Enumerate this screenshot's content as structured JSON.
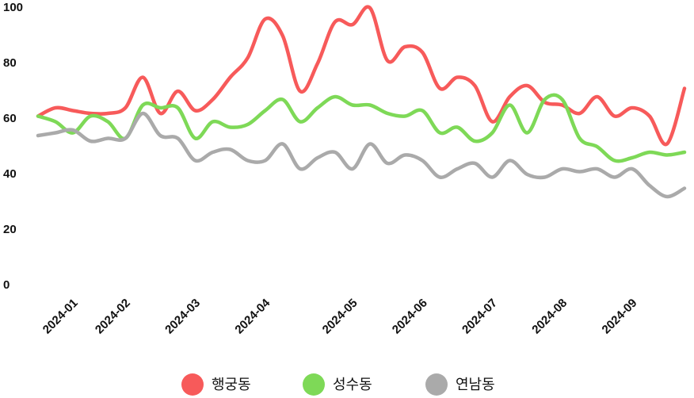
{
  "chart_data": {
    "type": "line",
    "categories": [
      null,
      null,
      "2024-01",
      null,
      null,
      "2024-02",
      null,
      null,
      null,
      "2024-03",
      null,
      null,
      null,
      "2024-04",
      null,
      null,
      null,
      null,
      "2024-05",
      null,
      null,
      null,
      "2024-06",
      null,
      null,
      null,
      "2024-07",
      null,
      null,
      null,
      "2024-08",
      null,
      null,
      null,
      "2024-09",
      null,
      null,
      null
    ],
    "series": [
      {
        "name": "행궁동",
        "color": "#f75a5a",
        "values": [
          61,
          64,
          63,
          62,
          62,
          64,
          75,
          62,
          70,
          63,
          67,
          75,
          82,
          96,
          90,
          70,
          80,
          95,
          94,
          100,
          81,
          86,
          84,
          71,
          75,
          72,
          59,
          68,
          72,
          66,
          65,
          62,
          68,
          61,
          64,
          61,
          51,
          71
        ]
      },
      {
        "name": "성수동",
        "color": "#7ed957",
        "values": [
          61,
          59,
          55,
          61,
          59,
          53,
          65,
          64,
          64,
          53,
          59,
          57,
          58,
          63,
          67,
          59,
          64,
          68,
          65,
          65,
          62,
          61,
          63,
          55,
          57,
          52,
          55,
          65,
          55,
          67,
          67,
          53,
          50,
          45,
          46,
          48,
          47,
          48
        ]
      },
      {
        "name": "연남동",
        "color": "#aaaaaa",
        "values": [
          54,
          55,
          56,
          52,
          53,
          53,
          62,
          54,
          53,
          45,
          48,
          49,
          45,
          45,
          51,
          42,
          46,
          48,
          42,
          51,
          44,
          47,
          45,
          39,
          42,
          44,
          39,
          45,
          40,
          39,
          42,
          41,
          42,
          39,
          42,
          36,
          32,
          35
        ]
      }
    ],
    "ylim": [
      0,
      100
    ],
    "yticks": [
      0,
      20,
      40,
      60,
      80,
      100
    ],
    "grid": false,
    "legend": "bottom"
  }
}
